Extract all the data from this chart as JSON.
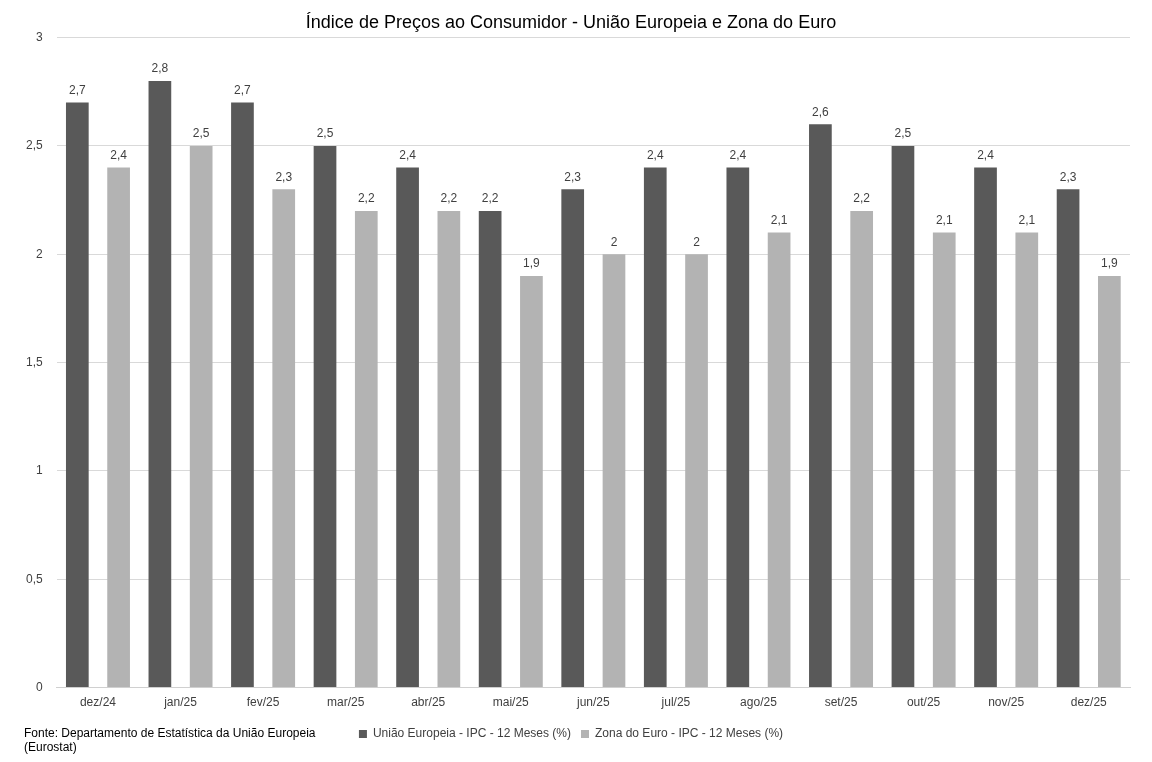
{
  "chart_data": {
    "type": "bar",
    "title": "Índice de Preços ao Consumidor - União Europeia e Zona do Euro",
    "categories": [
      "dez/24",
      "jan/25",
      "fev/25",
      "mar/25",
      "abr/25",
      "mai/25",
      "jun/25",
      "jul/25",
      "ago/25",
      "set/25",
      "out/25",
      "nov/25",
      "dez/25"
    ],
    "series": [
      {
        "name": "União Europeia - IPC - 12 Meses (%)",
        "color": "#595959",
        "values": [
          2.7,
          2.8,
          2.7,
          2.5,
          2.4,
          2.2,
          2.3,
          2.4,
          2.4,
          2.6,
          2.5,
          2.4,
          2.3
        ],
        "value_labels": [
          "2,7",
          "2,8",
          "2,7",
          "2,5",
          "2,4",
          "2,2",
          "2,3",
          "2,4",
          "2,4",
          "2,6",
          "2,5",
          "2,4",
          "2,3"
        ]
      },
      {
        "name": "Zona do Euro - IPC - 12 Meses (%)",
        "color": "#b3b3b3",
        "values": [
          2.4,
          2.5,
          2.3,
          2.2,
          2.2,
          1.9,
          2,
          2,
          2.1,
          2.2,
          2.1,
          2.1,
          1.9
        ],
        "value_labels": [
          "2,4",
          "2,5",
          "2,3",
          "2,2",
          "2,2",
          "1,9",
          "2",
          "2",
          "2,1",
          "2,2",
          "2,1",
          "2,1",
          "1,9"
        ]
      }
    ],
    "ylim": [
      0,
      3
    ],
    "yticks": [
      0,
      {
        "value": 0.5,
        "label": "0,5"
      },
      1,
      {
        "value": 1.5,
        "label": "1,5"
      },
      2,
      {
        "value": 2.5,
        "label": "2,5"
      },
      3
    ],
    "grid": "y",
    "legend": "bottom",
    "annotations": [
      "Fonte: Departamento de Estatística da União Europeia (Eurostat)"
    ]
  }
}
